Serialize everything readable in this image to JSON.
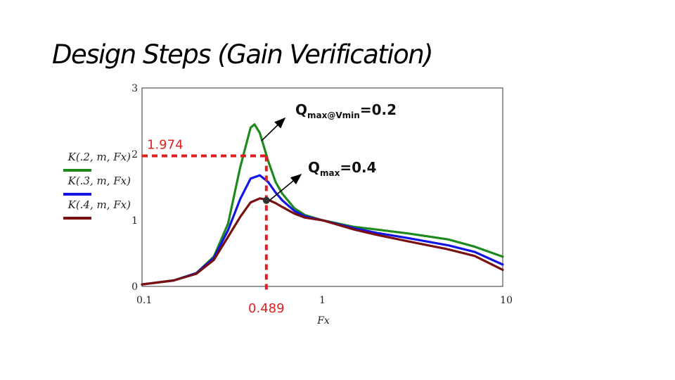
{
  "title": "Design Steps (Gain Verification)",
  "chart_data": {
    "type": "line",
    "xlabel": "Fx",
    "ylabel": "",
    "xscale": "log",
    "xlim": [
      0.1,
      10
    ],
    "ylim": [
      0,
      3
    ],
    "x_ticks": [
      "0.1",
      "1",
      "10"
    ],
    "y_ticks": [
      "0",
      "1",
      "2",
      "3"
    ],
    "grid": true,
    "series": [
      {
        "name": "K(.2, m, Fx)",
        "color": "#1e8a1e",
        "x": [
          0.1,
          0.15,
          0.2,
          0.25,
          0.3,
          0.35,
          0.4,
          0.42,
          0.45,
          0.5,
          0.55,
          0.6,
          0.7,
          0.8,
          1.0,
          1.5,
          2,
          3,
          5,
          7,
          10
        ],
        "y": [
          0.03,
          0.09,
          0.2,
          0.45,
          0.95,
          1.8,
          2.4,
          2.45,
          2.32,
          1.9,
          1.58,
          1.4,
          1.18,
          1.08,
          1.0,
          0.9,
          0.86,
          0.8,
          0.71,
          0.6,
          0.45
        ]
      },
      {
        "name": "K(.3, m, Fx)",
        "color": "#1414e6",
        "x": [
          0.1,
          0.15,
          0.2,
          0.25,
          0.3,
          0.35,
          0.4,
          0.45,
          0.5,
          0.55,
          0.6,
          0.7,
          0.8,
          1.0,
          1.5,
          2,
          3,
          5,
          7,
          10
        ],
        "y": [
          0.03,
          0.09,
          0.2,
          0.43,
          0.85,
          1.32,
          1.63,
          1.68,
          1.58,
          1.42,
          1.3,
          1.14,
          1.06,
          1.0,
          0.88,
          0.81,
          0.73,
          0.62,
          0.52,
          0.33
        ]
      },
      {
        "name": "K(.4, m, Fx)",
        "color": "#7a1010",
        "x": [
          0.1,
          0.15,
          0.2,
          0.25,
          0.3,
          0.35,
          0.4,
          0.45,
          0.5,
          0.55,
          0.6,
          0.7,
          0.8,
          1.0,
          1.5,
          2,
          3,
          5,
          7,
          10
        ],
        "y": [
          0.03,
          0.09,
          0.19,
          0.4,
          0.75,
          1.05,
          1.27,
          1.33,
          1.31,
          1.26,
          1.2,
          1.1,
          1.04,
          1.0,
          0.86,
          0.78,
          0.68,
          0.56,
          0.46,
          0.25
        ]
      }
    ],
    "annotations": [
      {
        "text": "1.974",
        "color": "#e02020"
      },
      {
        "text": "0.489",
        "color": "#e02020"
      },
      {
        "text_main": "Q",
        "text_sub": "max@Vmin",
        "text_value": "=0.2"
      },
      {
        "text_main": "Q",
        "text_sub": "max",
        "text_value": "=0.4"
      }
    ],
    "marker_point": {
      "x": 0.489,
      "y": 1.3
    },
    "reference_point": {
      "x": 0.489,
      "y": 1.974
    }
  }
}
